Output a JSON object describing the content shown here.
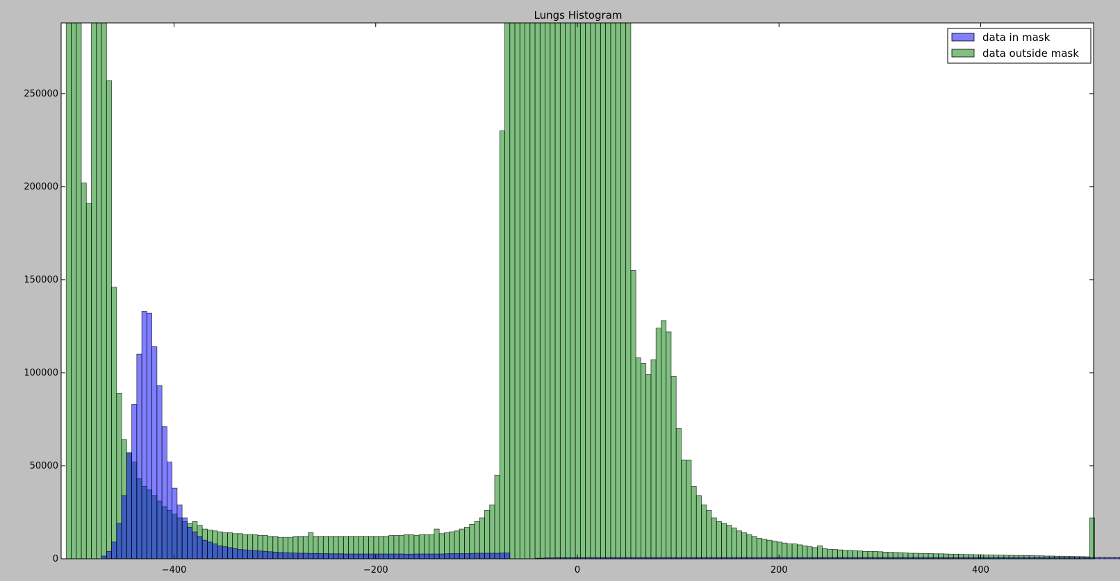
{
  "chart_data": {
    "type": "bar",
    "title": "Lungs Histogram",
    "xlabel": "",
    "ylabel": "",
    "xlim": [
      -512,
      512
    ],
    "ylim": [
      0,
      288000
    ],
    "grid": false,
    "legend_position": "top-right",
    "bin_start": -507,
    "bin_width": 5,
    "x_ticks": [
      -400,
      -200,
      0,
      200,
      400
    ],
    "x_tick_labels": [
      "−400",
      "−200",
      "0",
      "200",
      "400"
    ],
    "y_ticks": [
      0,
      50000,
      100000,
      150000,
      200000,
      250000
    ],
    "y_tick_labels": [
      "0",
      "50000",
      "100000",
      "150000",
      "200000",
      "250000"
    ],
    "series": [
      {
        "name": "data in mask",
        "color": "#0000ff",
        "opacity": 0.5,
        "values": [
          0,
          0,
          0,
          0,
          0,
          0,
          0,
          1500,
          4000,
          9000,
          19000,
          34000,
          57000,
          83000,
          110000,
          133000,
          132000,
          114000,
          93000,
          71000,
          52000,
          38000,
          29000,
          22000,
          17000,
          14500,
          12000,
          10000,
          9000,
          8000,
          7000,
          6500,
          6000,
          5500,
          5000,
          4800,
          4600,
          4400,
          4200,
          4000,
          3800,
          3600,
          3400,
          3300,
          3200,
          3100,
          3000,
          3000,
          2900,
          2900,
          2800,
          2800,
          2700,
          2700,
          2700,
          2600,
          2600,
          2600,
          2600,
          2600,
          2600,
          2600,
          2600,
          2600,
          2600,
          2600,
          2600,
          2500,
          2500,
          2600,
          2600,
          2600,
          2600,
          2600,
          2600,
          2700,
          2800,
          2800,
          2800,
          2800,
          2900,
          3000,
          3000,
          3000,
          3000,
          3000,
          3100,
          3100,
          0,
          0,
          0,
          0,
          0,
          300,
          400,
          500,
          500,
          600,
          600,
          600,
          600,
          600,
          600,
          700,
          700,
          700,
          700,
          700,
          700,
          700,
          700,
          700,
          700,
          700,
          700,
          700,
          700,
          700,
          700,
          700,
          700,
          700,
          700,
          700,
          700,
          700,
          700,
          700,
          700,
          700,
          700,
          700,
          700,
          700,
          700,
          700,
          700,
          700,
          700,
          700,
          700,
          700,
          700,
          700,
          700,
          700,
          700,
          700,
          700,
          700,
          700,
          700,
          700,
          700,
          700,
          700,
          700,
          700,
          700,
          700,
          700,
          700,
          700,
          700,
          700,
          700,
          700,
          700,
          700,
          700,
          700,
          700,
          700,
          700,
          700,
          700,
          700,
          700,
          700,
          700,
          700,
          700,
          700,
          700,
          700,
          700,
          700,
          700,
          700,
          700,
          700,
          700,
          700,
          700,
          700,
          700,
          700,
          700,
          700,
          700,
          700,
          700,
          700,
          700,
          700,
          700,
          700,
          700,
          700,
          700,
          700,
          700,
          700
        ]
      },
      {
        "name": "data outside mask",
        "color": "#008000",
        "opacity": 0.5,
        "values": [
          300000,
          300000,
          300000,
          202000,
          191000,
          300000,
          300000,
          300000,
          257000,
          146000,
          89000,
          64000,
          57000,
          52000,
          43000,
          39000,
          37000,
          34000,
          31000,
          28000,
          26000,
          24000,
          22000,
          20000,
          19000,
          20000,
          18000,
          16000,
          15500,
          15000,
          14500,
          14000,
          14000,
          13500,
          13500,
          13000,
          13000,
          13000,
          12500,
          12500,
          12000,
          12000,
          11500,
          11500,
          11500,
          12000,
          12000,
          12000,
          14000,
          12000,
          12000,
          12000,
          12000,
          12000,
          12000,
          12000,
          12000,
          12000,
          12000,
          12000,
          12000,
          12000,
          12000,
          12000,
          12500,
          12500,
          12500,
          13000,
          13000,
          12500,
          13000,
          13000,
          13000,
          16000,
          13500,
          14000,
          14500,
          15000,
          16000,
          17000,
          18500,
          20000,
          22000,
          26000,
          29000,
          45000,
          230000,
          300000,
          300000,
          300000,
          300000,
          300000,
          300000,
          300000,
          300000,
          300000,
          300000,
          300000,
          300000,
          300000,
          300000,
          300000,
          300000,
          300000,
          300000,
          300000,
          300000,
          300000,
          300000,
          300000,
          300000,
          300000,
          155000,
          108000,
          105000,
          99000,
          107000,
          124000,
          128000,
          122000,
          98000,
          70000,
          53000,
          53000,
          39000,
          34000,
          29000,
          26000,
          22000,
          20000,
          19000,
          18000,
          16500,
          15000,
          14000,
          13000,
          12000,
          11000,
          10500,
          10000,
          9500,
          9000,
          8500,
          8000,
          8000,
          7500,
          7000,
          6500,
          6000,
          7000,
          5500,
          5000,
          5000,
          4800,
          4500,
          4500,
          4300,
          4200,
          4000,
          4000,
          4000,
          3800,
          3600,
          3500,
          3400,
          3300,
          3200,
          3000,
          3000,
          2900,
          2800,
          2800,
          2700,
          2700,
          2600,
          2500,
          2500,
          2400,
          2300,
          2300,
          2200,
          2200,
          2100,
          2100,
          2000,
          2000,
          1900,
          1900,
          1800,
          1800,
          1700,
          1700,
          1600,
          1600,
          1500,
          1500,
          1400,
          1400,
          1300,
          1300,
          1200,
          1200,
          1100,
          22000
        ]
      }
    ]
  }
}
